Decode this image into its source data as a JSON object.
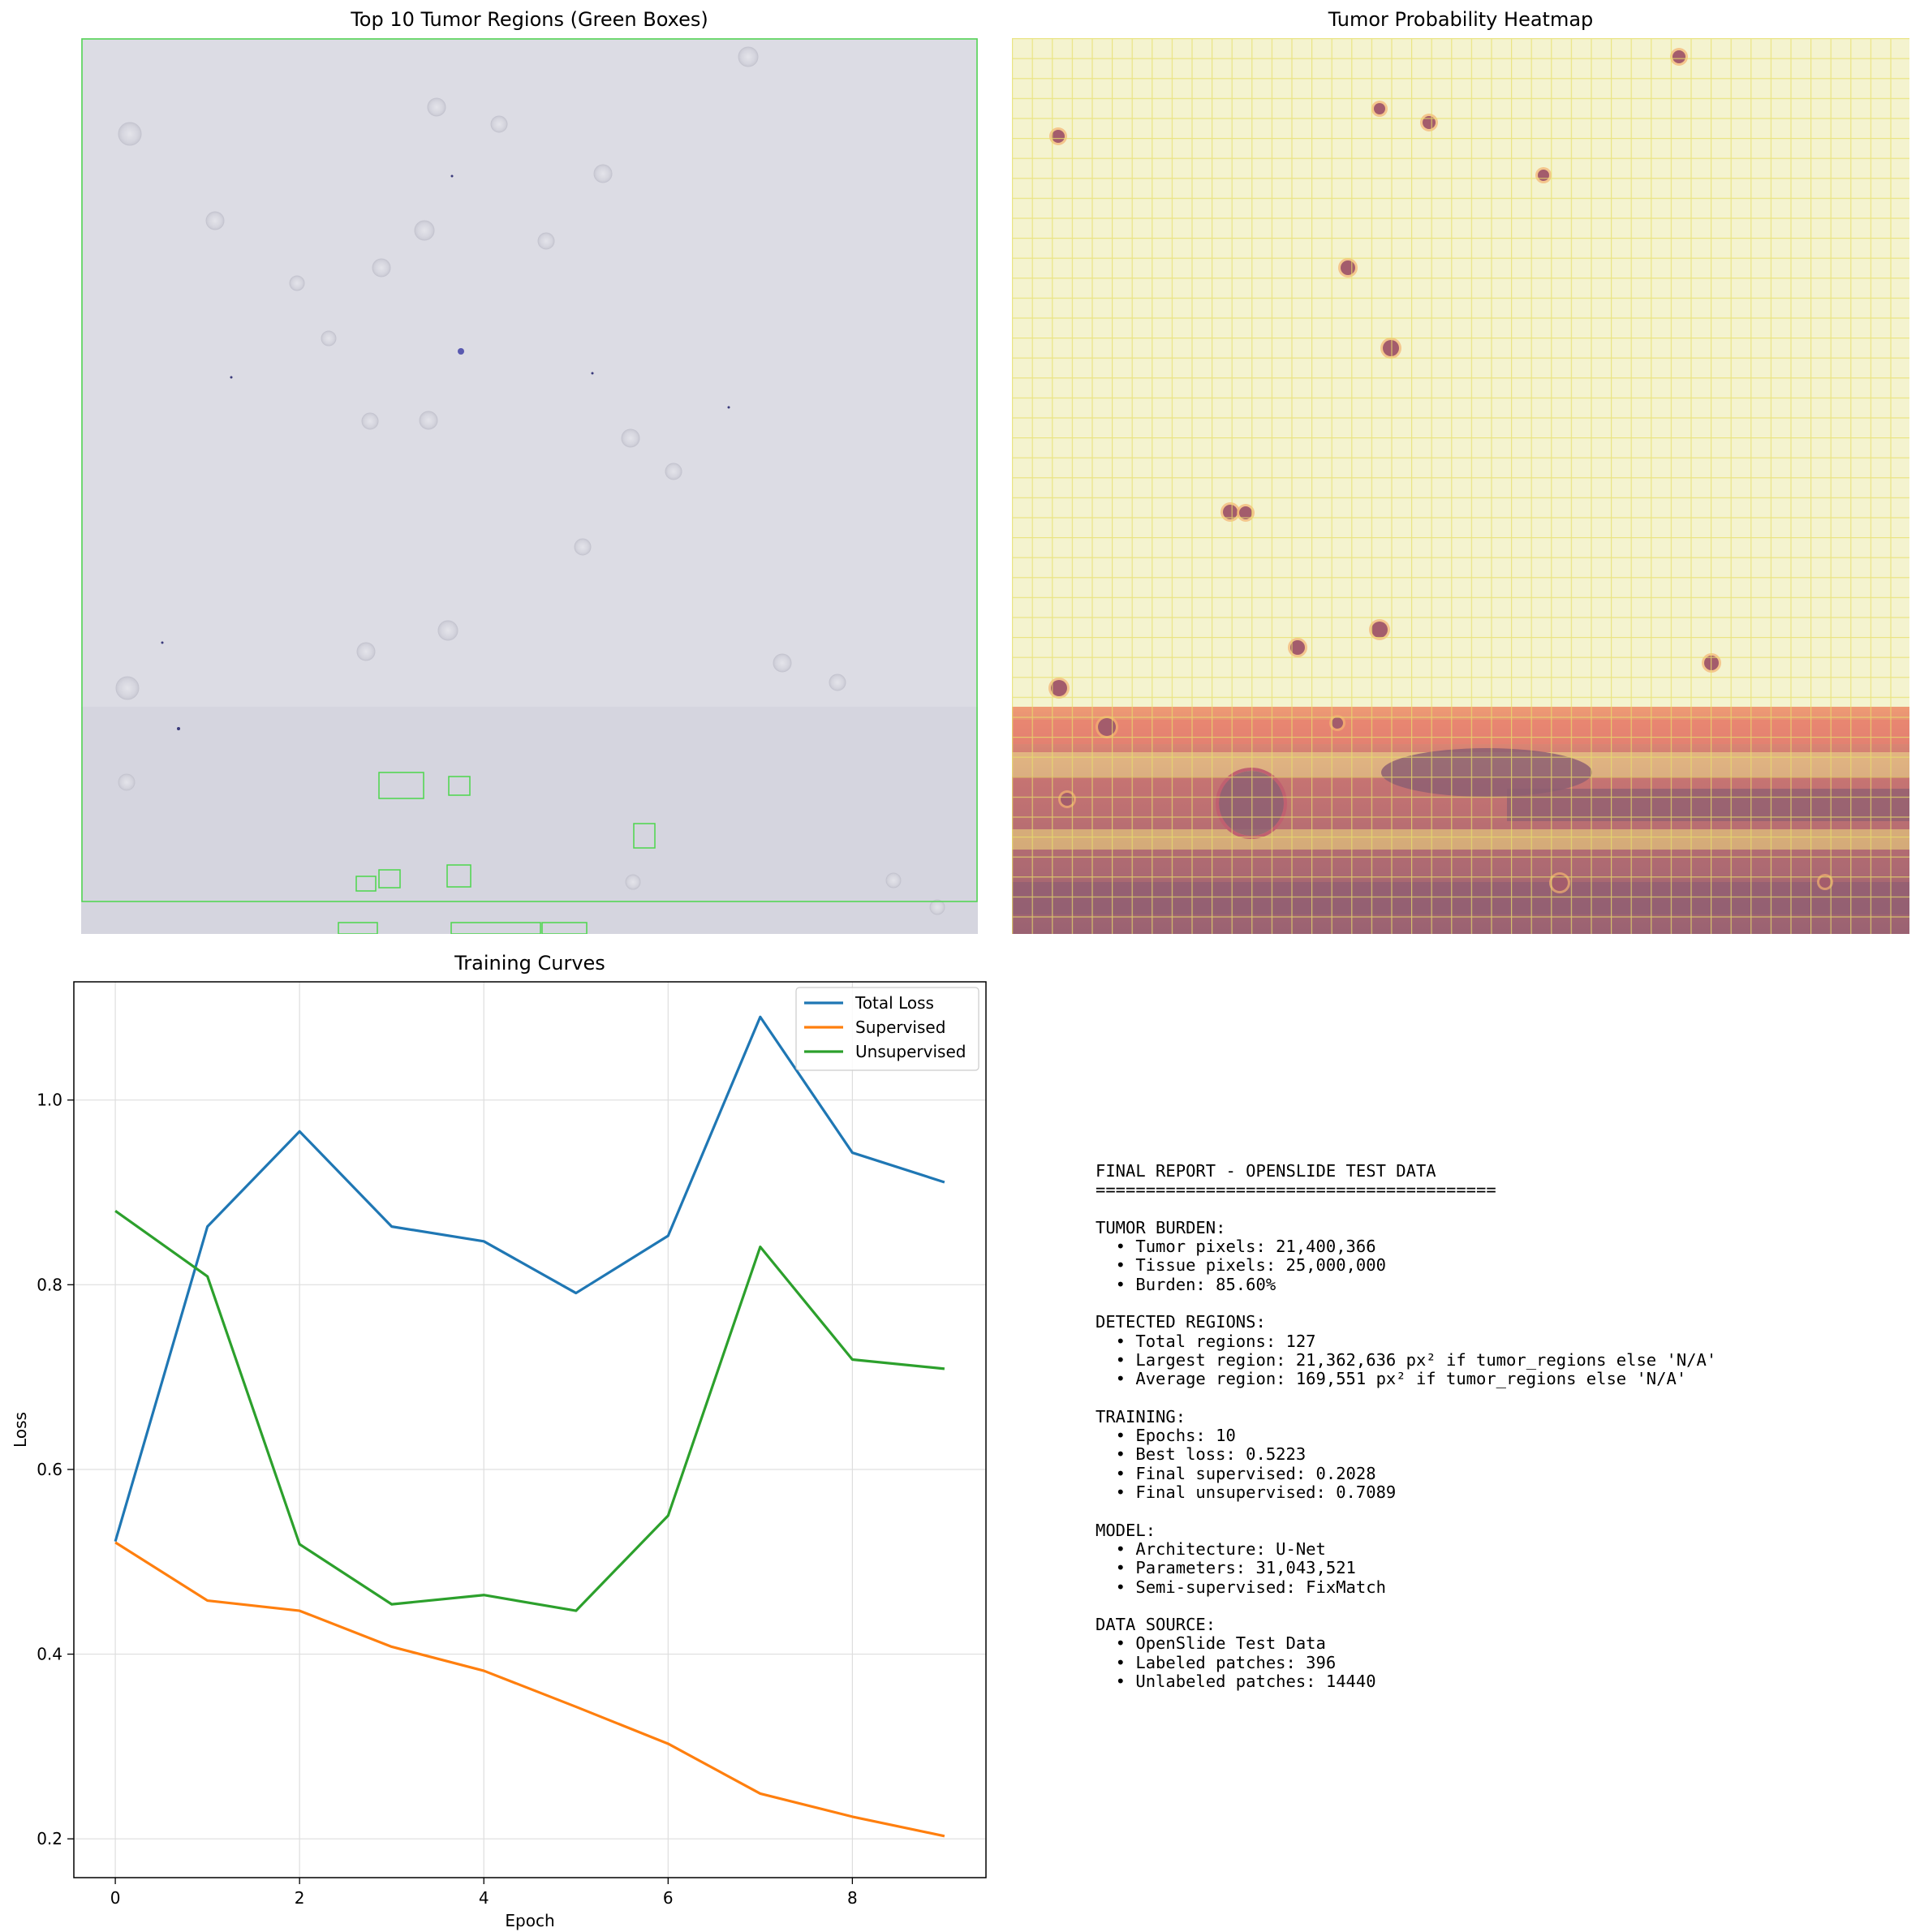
{
  "panels": {
    "slide_title": "Top 10 Tumor Regions (Green Boxes)",
    "heatmap_title": "Tumor Probability Heatmap"
  },
  "colors": {
    "slide_background": "#d9d9e2",
    "box_color": "#4cd64c",
    "heat_low": "#f4f3c6",
    "heat_mid": "#e8e070",
    "heat_high": "#9b5a6a",
    "total_loss": "#1f77b4",
    "supervised": "#ff7f0e",
    "unsupervised": "#2ca02c"
  },
  "chart_data": {
    "type": "line",
    "title": "Training Curves",
    "xlabel": "Epoch",
    "ylabel": "Loss",
    "x": [
      0,
      1,
      2,
      3,
      4,
      5,
      6,
      7,
      8,
      9
    ],
    "xlim": [
      -0.45,
      9.45
    ],
    "ylim": [
      0.158,
      1.128
    ],
    "xticks": [
      0,
      2,
      4,
      6,
      8
    ],
    "yticks": [
      0.2,
      0.4,
      0.6,
      0.8,
      1.0
    ],
    "xtick_labels": [
      "0",
      "2",
      "4",
      "6",
      "8"
    ],
    "ytick_labels": [
      "0.2",
      "0.4",
      "0.6",
      "0.8",
      "1.0"
    ],
    "grid": true,
    "legend_position": "top-right",
    "series": [
      {
        "name": "Total Loss",
        "color": "#1f77b4",
        "values": [
          0.522,
          0.863,
          0.966,
          0.863,
          0.847,
          0.791,
          0.853,
          1.09,
          0.943,
          0.911
        ]
      },
      {
        "name": "Supervised",
        "color": "#ff7f0e",
        "values": [
          0.521,
          0.458,
          0.447,
          0.408,
          0.382,
          0.343,
          0.303,
          0.249,
          0.224,
          0.203
        ]
      },
      {
        "name": "Unsupervised",
        "color": "#2ca02c",
        "values": [
          0.88,
          0.809,
          0.519,
          0.454,
          0.464,
          0.447,
          0.55,
          0.841,
          0.719,
          0.709
        ]
      }
    ]
  },
  "report": {
    "lines": [
      "FINAL REPORT - OPENSLIDE TEST DATA",
      "========================================",
      "",
      "TUMOR BURDEN:",
      "  • Tumor pixels: 21,400,366",
      "  • Tissue pixels: 25,000,000",
      "  • Burden: 85.60%",
      "",
      "DETECTED REGIONS:",
      "  • Total regions: 127",
      "  • Largest region: 21,362,636 px² if tumor_regions else 'N/A'",
      "  • Average region: 169,551 px² if tumor_regions else 'N/A'",
      "",
      "TRAINING:",
      "  • Epochs: 10",
      "  • Best loss: 0.5223",
      "  • Final supervised: 0.2028",
      "  • Final unsupervised: 0.7089",
      "",
      "MODEL:",
      "  • Architecture: U-Net",
      "  • Parameters: 31,043,521",
      "  • Semi-supervised: FixMatch",
      "",
      "DATA SOURCE:",
      "  • OpenSlide Test Data",
      "  • Labeled patches: 396",
      "  • Unlabeled patches: 14440"
    ]
  }
}
